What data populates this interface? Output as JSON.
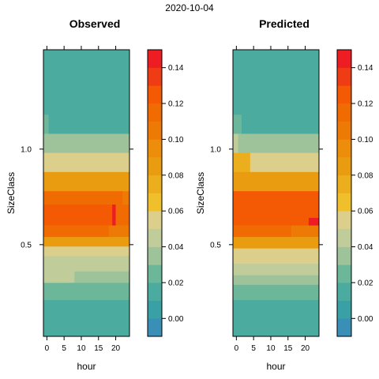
{
  "super_title": "2020-10-04",
  "chart_data": [
    {
      "type": "heatmap",
      "title": "Observed",
      "xlabel": "hour",
      "ylabel": "SizeClass",
      "x_ticks": [
        0,
        5,
        10,
        15,
        20
      ],
      "y_ticks": [
        0.5,
        1.0
      ],
      "y_tick_labels": [
        "0.5",
        "1.0"
      ],
      "xlim": [
        -1,
        24
      ],
      "ylim": [
        0.02,
        1.52
      ],
      "legend_placement": "right",
      "color_ticks": [
        "0.00",
        "0.02",
        "0.04",
        "0.06",
        "0.08",
        "0.10",
        "0.12",
        "0.14"
      ],
      "color_range": [
        -0.01,
        0.15
      ],
      "color_step": 0.01,
      "rows": [
        {
          "y0": 1.18,
          "y1": 1.52,
          "values": [
            {
              "x0": -1,
              "x1": 24,
              "v": 0.01
            }
          ]
        },
        {
          "y0": 1.08,
          "y1": 1.18,
          "values": [
            {
              "x0": -1,
              "x1": 0.5,
              "v": 0.02
            },
            {
              "x0": 0.5,
              "x1": 24,
              "v": 0.01
            }
          ]
        },
        {
          "y0": 0.98,
          "y1": 1.08,
          "values": [
            {
              "x0": -1,
              "x1": 24,
              "v": 0.03
            }
          ]
        },
        {
          "y0": 0.88,
          "y1": 0.98,
          "values": [
            {
              "x0": -1,
              "x1": 24,
              "v": 0.05
            }
          ]
        },
        {
          "y0": 0.78,
          "y1": 0.88,
          "values": [
            {
              "x0": -1,
              "x1": 24,
              "v": 0.09
            }
          ]
        },
        {
          "y0": 0.71,
          "y1": 0.78,
          "values": [
            {
              "x0": -1,
              "x1": 22,
              "v": 0.11
            },
            {
              "x0": 22,
              "x1": 24,
              "v": 0.1
            }
          ]
        },
        {
          "y0": 0.6,
          "y1": 0.71,
          "values": [
            {
              "x0": -1,
              "x1": 19,
              "v": 0.12
            },
            {
              "x0": 19,
              "x1": 20,
              "v": 0.14
            },
            {
              "x0": 20,
              "x1": 24,
              "v": 0.11
            }
          ]
        },
        {
          "y0": 0.54,
          "y1": 0.6,
          "values": [
            {
              "x0": -1,
              "x1": 18,
              "v": 0.11
            },
            {
              "x0": 18,
              "x1": 24,
              "v": 0.1
            }
          ]
        },
        {
          "y0": 0.49,
          "y1": 0.54,
          "values": [
            {
              "x0": -1,
              "x1": 5,
              "v": 0.08
            },
            {
              "x0": 5,
              "x1": 18,
              "v": 0.09
            },
            {
              "x0": 18,
              "x1": 24,
              "v": 0.08
            }
          ]
        },
        {
          "y0": 0.44,
          "y1": 0.49,
          "values": [
            {
              "x0": -1,
              "x1": 18,
              "v": 0.06
            },
            {
              "x0": 18,
              "x1": 24,
              "v": 0.05
            }
          ]
        },
        {
          "y0": 0.36,
          "y1": 0.44,
          "values": [
            {
              "x0": -1,
              "x1": 24,
              "v": 0.04
            }
          ]
        },
        {
          "y0": 0.3,
          "y1": 0.36,
          "values": [
            {
              "x0": -1,
              "x1": 8,
              "v": 0.04
            },
            {
              "x0": 8,
              "x1": 24,
              "v": 0.03
            }
          ]
        },
        {
          "y0": 0.21,
          "y1": 0.3,
          "values": [
            {
              "x0": -1,
              "x1": 24,
              "v": 0.02
            }
          ]
        },
        {
          "y0": 0.02,
          "y1": 0.21,
          "values": [
            {
              "x0": -1,
              "x1": 24,
              "v": 0.01
            }
          ]
        }
      ]
    },
    {
      "type": "heatmap",
      "title": "Predicted",
      "xlabel": "hour",
      "ylabel": "SizeClass",
      "x_ticks": [
        0,
        5,
        10,
        15,
        20
      ],
      "y_ticks": [
        0.5,
        1.0
      ],
      "y_tick_labels": [
        "0.5",
        "1.0"
      ],
      "xlim": [
        -1,
        24
      ],
      "ylim": [
        0.02,
        1.52
      ],
      "legend_placement": "right",
      "color_ticks": [
        "0.00",
        "0.02",
        "0.04",
        "0.06",
        "0.08",
        "0.10",
        "0.12",
        "0.14"
      ],
      "color_range": [
        -0.01,
        0.15
      ],
      "color_step": 0.01,
      "rows": [
        {
          "y0": 1.18,
          "y1": 1.52,
          "values": [
            {
              "x0": -1,
              "x1": 24,
              "v": 0.01
            }
          ]
        },
        {
          "y0": 1.08,
          "y1": 1.18,
          "values": [
            {
              "x0": -1,
              "x1": 1.5,
              "v": 0.02
            },
            {
              "x0": 1.5,
              "x1": 24,
              "v": 0.01
            }
          ]
        },
        {
          "y0": 0.98,
          "y1": 1.08,
          "values": [
            {
              "x0": -1,
              "x1": 0.5,
              "v": 0.04
            },
            {
              "x0": 0.5,
              "x1": 24,
              "v": 0.03
            }
          ]
        },
        {
          "y0": 0.88,
          "y1": 0.98,
          "values": [
            {
              "x0": -1,
              "x1": 4,
              "v": 0.07
            },
            {
              "x0": 4,
              "x1": 24,
              "v": 0.05
            }
          ]
        },
        {
          "y0": 0.78,
          "y1": 0.88,
          "values": [
            {
              "x0": -1,
              "x1": 24,
              "v": 0.09
            }
          ]
        },
        {
          "y0": 0.64,
          "y1": 0.78,
          "values": [
            {
              "x0": -1,
              "x1": 24,
              "v": 0.12
            }
          ]
        },
        {
          "y0": 0.6,
          "y1": 0.64,
          "values": [
            {
              "x0": -1,
              "x1": 21,
              "v": 0.12
            },
            {
              "x0": 21,
              "x1": 24,
              "v": 0.14
            }
          ]
        },
        {
          "y0": 0.54,
          "y1": 0.6,
          "values": [
            {
              "x0": -1,
              "x1": 16,
              "v": 0.11
            },
            {
              "x0": 16,
              "x1": 24,
              "v": 0.1
            }
          ]
        },
        {
          "y0": 0.48,
          "y1": 0.54,
          "values": [
            {
              "x0": -1,
              "x1": 24,
              "v": 0.09
            }
          ]
        },
        {
          "y0": 0.44,
          "y1": 0.48,
          "values": [
            {
              "x0": -1,
              "x1": 24,
              "v": 0.06
            }
          ]
        },
        {
          "y0": 0.4,
          "y1": 0.44,
          "values": [
            {
              "x0": -1,
              "x1": 24,
              "v": 0.05
            }
          ]
        },
        {
          "y0": 0.34,
          "y1": 0.4,
          "values": [
            {
              "x0": -1,
              "x1": 24,
              "v": 0.04
            }
          ]
        },
        {
          "y0": 0.29,
          "y1": 0.34,
          "values": [
            {
              "x0": -1,
              "x1": 24,
              "v": 0.03
            }
          ]
        },
        {
          "y0": 0.21,
          "y1": 0.29,
          "values": [
            {
              "x0": -1,
              "x1": 24,
              "v": 0.02
            }
          ]
        },
        {
          "y0": 0.02,
          "y1": 0.21,
          "values": [
            {
              "x0": -1,
              "x1": 24,
              "v": 0.01
            }
          ]
        }
      ]
    }
  ],
  "palette": [
    "#3a8fb7",
    "#39a0a6",
    "#4bab9e",
    "#6cb79a",
    "#9ec39b",
    "#c0cc99",
    "#dbcf8b",
    "#efbf2c",
    "#ebae1d",
    "#ea9c11",
    "#ec8d0c",
    "#ee7a06",
    "#f06c02",
    "#f35a03",
    "#f03c14",
    "#ee1d24"
  ]
}
